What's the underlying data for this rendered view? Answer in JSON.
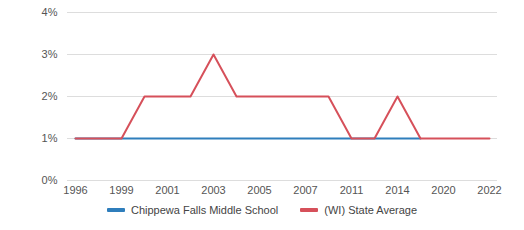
{
  "chart_data": {
    "type": "line",
    "categories": [
      "1996",
      null,
      "1999",
      null,
      "2001",
      null,
      "2003",
      null,
      "2005",
      null,
      "2007",
      null,
      "2011",
      null,
      "2014",
      null,
      "2020",
      null,
      "2022"
    ],
    "series": [
      {
        "name": "Chippewa Falls Middle School",
        "color": "#2f7ebc",
        "values": [
          1,
          1,
          1,
          1,
          1,
          1,
          1,
          1,
          1,
          1,
          1,
          1,
          1,
          1,
          1,
          1,
          null,
          null,
          null
        ]
      },
      {
        "name": "(WI) State Average",
        "color": "#d6505a",
        "values": [
          1,
          1,
          1,
          2,
          2,
          2,
          3,
          2,
          2,
          2,
          2,
          2,
          1,
          1,
          2,
          1,
          1,
          1,
          1
        ]
      }
    ],
    "ylim": [
      0,
      4
    ],
    "yticks": [
      {
        "value": 0,
        "label": "0%"
      },
      {
        "value": 1,
        "label": "1%"
      },
      {
        "value": 2,
        "label": "2%"
      },
      {
        "value": 3,
        "label": "3%"
      },
      {
        "value": 4,
        "label": "4%"
      }
    ],
    "grid": true,
    "legend": "bottom"
  }
}
